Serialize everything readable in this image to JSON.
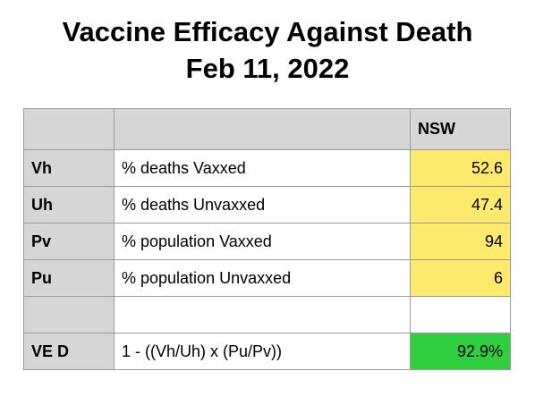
{
  "title": {
    "line1": "Vaccine Efficacy Against Death",
    "line2": "Feb 11, 2022"
  },
  "table": {
    "header": {
      "col0": "",
      "col1": "",
      "col2": "NSW"
    },
    "rows": [
      {
        "key": "Vh",
        "label": "% deaths Vaxxed",
        "value": "52.6"
      },
      {
        "key": "Uh",
        "label": "% deaths Unvaxxed",
        "value": "47.4"
      },
      {
        "key": "Pv",
        "label": "% population Vaxxed",
        "value": "94"
      },
      {
        "key": "Pu",
        "label": "% population Unvaxxed",
        "value": "6"
      }
    ],
    "blank": {
      "key": "",
      "label": "",
      "value": ""
    },
    "result": {
      "key": "VE D",
      "label": "1 - ((Vh/Uh) x (Pu/Pv))",
      "value": "92.9%"
    }
  },
  "colors": {
    "header_gray": "#d6d6d6",
    "input_yellow": "#fde96b",
    "result_green": "#2fcf3f"
  }
}
